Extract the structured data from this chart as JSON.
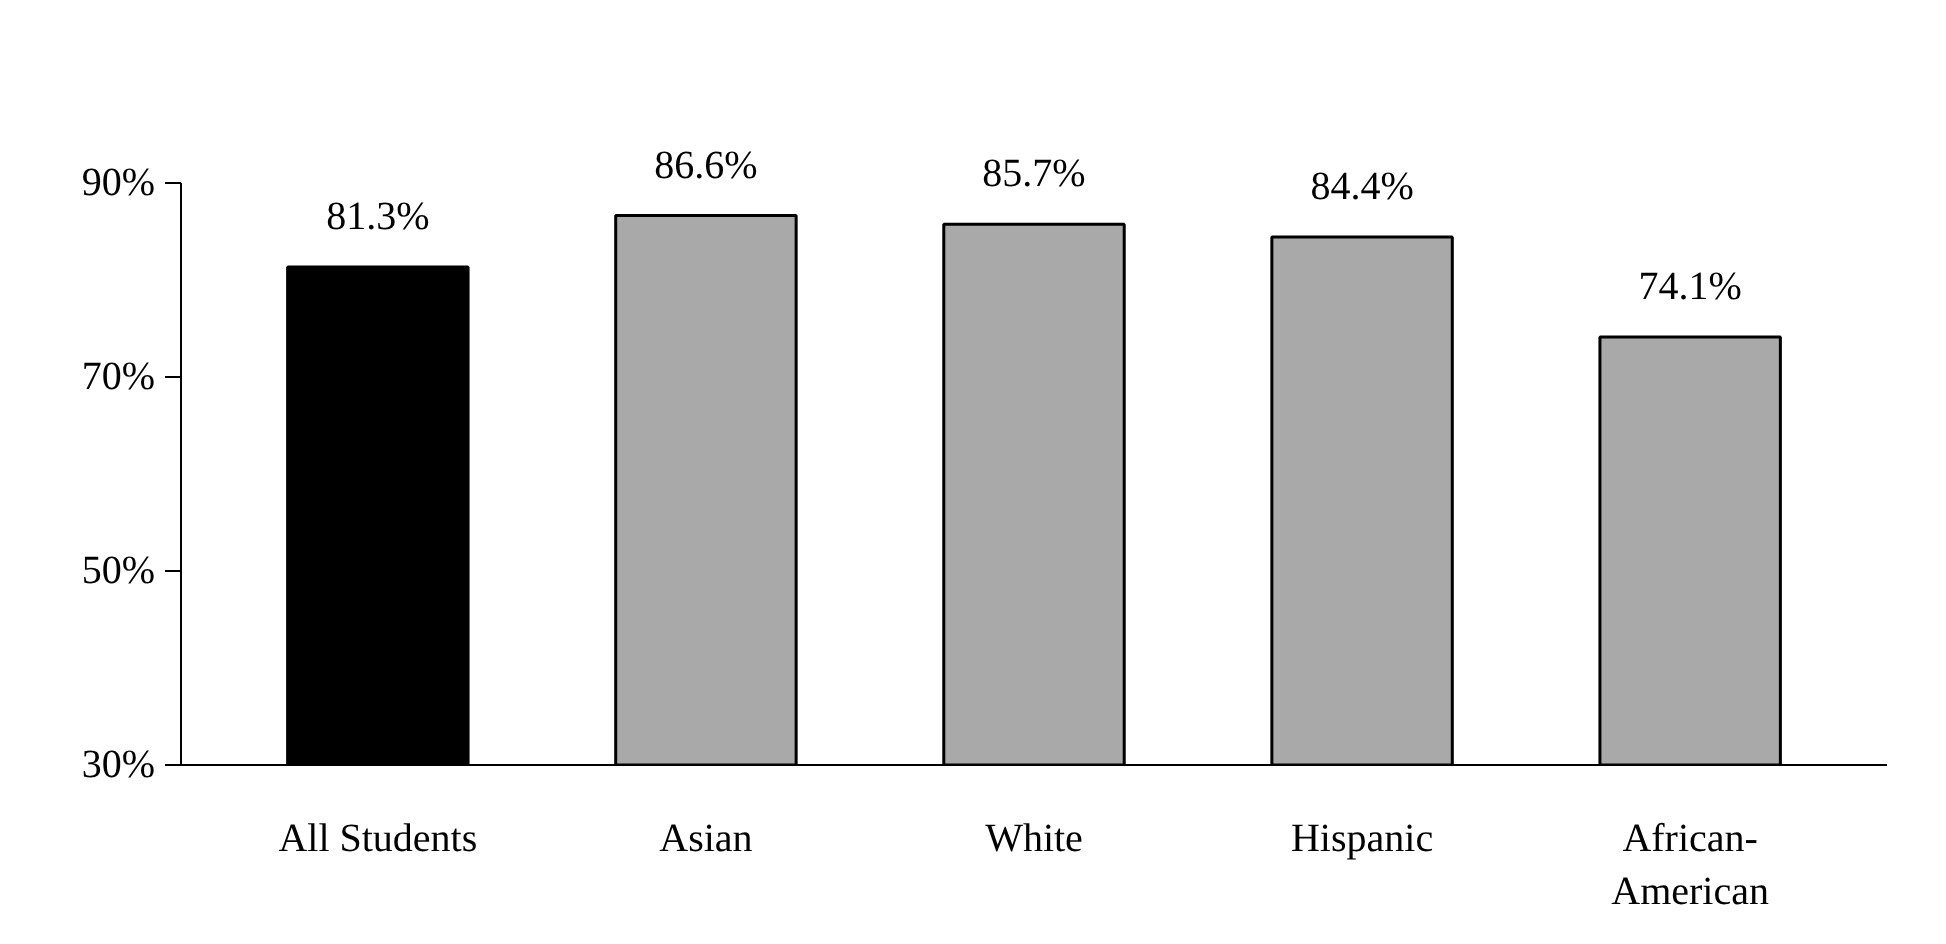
{
  "chart_data": {
    "type": "bar",
    "categories": [
      "All Students",
      "Asian",
      "White",
      "Hispanic",
      "African-American"
    ],
    "values": [
      81.3,
      86.6,
      85.7,
      84.4,
      74.1
    ],
    "colors": [
      "#000000",
      "#a9a9a9",
      "#a9a9a9",
      "#a9a9a9",
      "#a9a9a9"
    ],
    "value_labels": [
      "81.3%",
      "86.6%",
      "85.7%",
      "84.4%",
      "74.1%"
    ],
    "ylim": [
      30,
      90
    ],
    "yticks": [
      {
        "value": 30,
        "label": "30%"
      },
      {
        "value": 50,
        "label": "50%"
      },
      {
        "value": 70,
        "label": "70%"
      },
      {
        "value": 90,
        "label": "90%"
      }
    ],
    "grid": false
  }
}
